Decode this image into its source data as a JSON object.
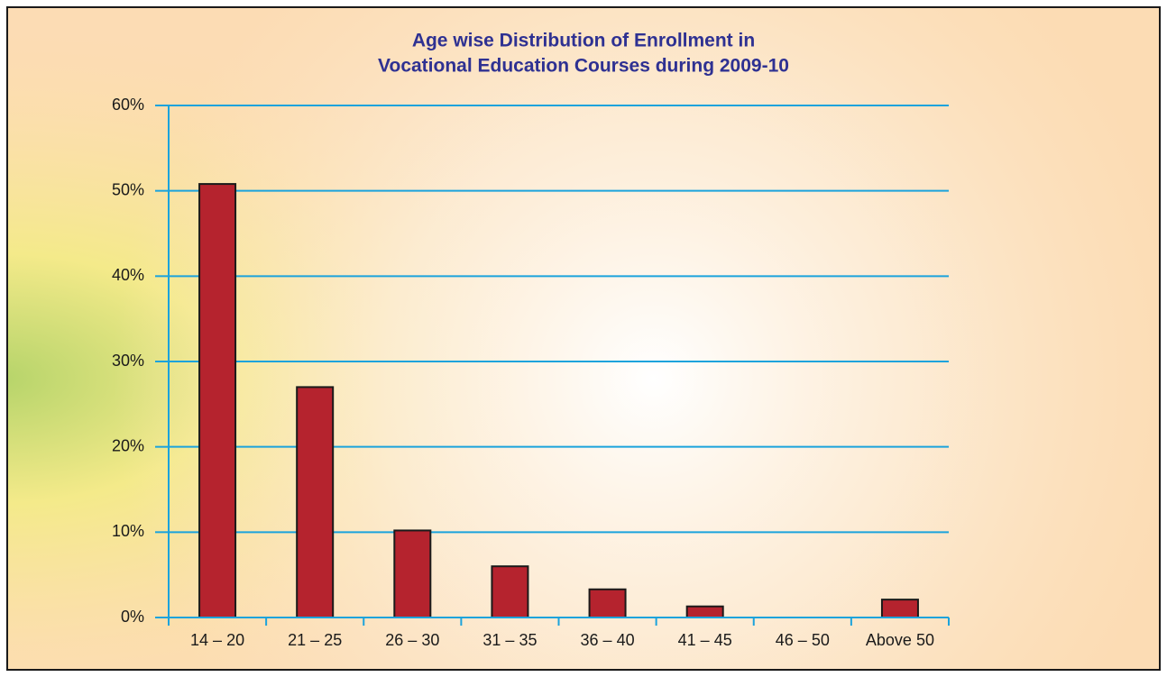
{
  "chart_data": {
    "type": "bar",
    "title": [
      "Age wise Distribution of Enrollment in",
      "Vocational Education Courses during 2009-10"
    ],
    "categories": [
      "14 – 20",
      "21 – 25",
      "26 – 30",
      "31 – 35",
      "36 – 40",
      "41 – 45",
      "46 – 50",
      "Above 50"
    ],
    "values": [
      50.8,
      27.0,
      10.2,
      6.0,
      3.3,
      1.3,
      0,
      2.1
    ],
    "color": "#b5232e",
    "ylim": [
      0,
      60
    ],
    "yticks": [
      {
        "value": 0,
        "label": "0%"
      },
      {
        "value": 10,
        "label": "10%"
      },
      {
        "value": 20,
        "label": "20%"
      },
      {
        "value": 30,
        "label": "30%"
      },
      {
        "value": 40,
        "label": "40%"
      },
      {
        "value": 50,
        "label": "50%"
      },
      {
        "value": 60,
        "label": "60%"
      }
    ],
    "grid": true
  }
}
